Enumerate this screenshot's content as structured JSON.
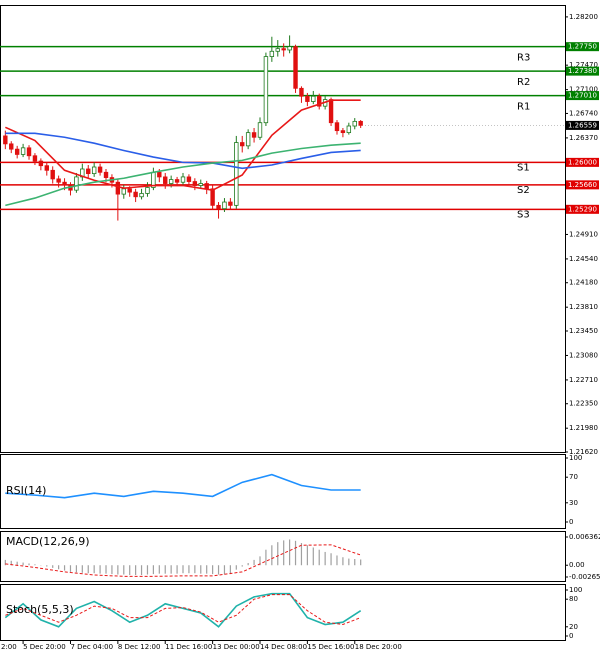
{
  "chart_data": [
    {
      "type": "candlestick",
      "xlim": [
        -0.9,
        94.5
      ],
      "ylim": [
        1.2162,
        1.2838
      ],
      "up_color": "#1f7a1f",
      "down_color": "#e01010",
      "open": [
        1.264,
        1.2628,
        1.262,
        1.2612,
        1.2622,
        1.261,
        1.2602,
        1.2595,
        1.2588,
        1.2575,
        1.257,
        1.2566,
        1.2558,
        1.2578,
        1.259,
        1.2583,
        1.2593,
        1.2585,
        1.2577,
        1.257,
        1.2552,
        1.256,
        1.2555,
        1.2548,
        1.2553,
        1.2562,
        1.2585,
        1.2578,
        1.2568,
        1.2574,
        1.257,
        1.2578,
        1.2571,
        1.2565,
        1.2568,
        1.256,
        1.2535,
        1.253,
        1.254,
        1.2535,
        1.263,
        1.2625,
        1.2645,
        1.2638,
        1.266,
        1.276,
        1.2768,
        1.2772,
        1.277,
        1.2775,
        1.2712,
        1.27,
        1.2692,
        1.27,
        1.2685,
        1.2695,
        1.266,
        1.2648,
        1.2645,
        1.2655,
        1.2662
      ],
      "high": [
        1.2648,
        1.2632,
        1.2625,
        1.2628,
        1.2626,
        1.2614,
        1.2606,
        1.26,
        1.2594,
        1.258,
        1.2576,
        1.257,
        1.2584,
        1.2598,
        1.2596,
        1.26,
        1.2598,
        1.259,
        1.2582,
        1.2575,
        1.2566,
        1.2564,
        1.256,
        1.256,
        1.257,
        1.2592,
        1.259,
        1.2584,
        1.258,
        1.2578,
        1.2584,
        1.2582,
        1.2576,
        1.2574,
        1.2572,
        1.2565,
        1.254,
        1.2546,
        1.2546,
        1.264,
        1.264,
        1.265,
        1.2652,
        1.2668,
        1.2766,
        1.279,
        1.2785,
        1.278,
        1.2792,
        1.2778,
        1.2715,
        1.2705,
        1.2708,
        1.2704,
        1.27,
        1.2698,
        1.2664,
        1.2652,
        1.266,
        1.2667,
        1.2664
      ],
      "low": [
        1.262,
        1.2614,
        1.2606,
        1.2608,
        1.2604,
        1.2596,
        1.2588,
        1.258,
        1.2568,
        1.2562,
        1.2558,
        1.255,
        1.2554,
        1.2572,
        1.2576,
        1.2578,
        1.258,
        1.257,
        1.2562,
        1.2512,
        1.2545,
        1.2548,
        1.254,
        1.2544,
        1.2548,
        1.2558,
        1.257,
        1.256,
        1.2562,
        1.2564,
        1.2565,
        1.2566,
        1.2558,
        1.256,
        1.2552,
        1.2528,
        1.2515,
        1.2525,
        1.2528,
        1.253,
        1.2615,
        1.262,
        1.263,
        1.2634,
        1.2655,
        1.2752,
        1.276,
        1.276,
        1.2765,
        1.2705,
        1.269,
        1.2685,
        1.2688,
        1.268,
        1.268,
        1.2655,
        1.2642,
        1.2638,
        1.2642,
        1.265,
        1.2652
      ],
      "close": [
        1.2628,
        1.262,
        1.2612,
        1.2622,
        1.261,
        1.2602,
        1.2595,
        1.2588,
        1.2575,
        1.257,
        1.2566,
        1.2558,
        1.2578,
        1.259,
        1.2583,
        1.2593,
        1.2585,
        1.2577,
        1.257,
        1.2552,
        1.256,
        1.2555,
        1.2548,
        1.2553,
        1.2562,
        1.2585,
        1.2578,
        1.2568,
        1.2574,
        1.257,
        1.2578,
        1.2571,
        1.2565,
        1.2568,
        1.256,
        1.2535,
        1.253,
        1.254,
        1.2535,
        1.263,
        1.2625,
        1.2645,
        1.2638,
        1.266,
        1.276,
        1.2768,
        1.2772,
        1.277,
        1.2775,
        1.2712,
        1.27,
        1.2692,
        1.27,
        1.2685,
        1.2695,
        1.266,
        1.2648,
        1.2645,
        1.2655,
        1.2662,
        1.2656
      ],
      "series": [
        {
          "color": "#e81818",
          "x": [
            0,
            5,
            10,
            15,
            20,
            25,
            30,
            35,
            40,
            45,
            50,
            55,
            60
          ],
          "values": [
            1.2653,
            1.2633,
            1.2588,
            1.2573,
            1.2561,
            1.2565,
            1.2565,
            1.2558,
            1.2581,
            1.2641,
            1.2679,
            1.2694,
            1.2694
          ]
        },
        {
          "color": "#2a5ee8",
          "x": [
            0,
            5,
            10,
            15,
            20,
            25,
            30,
            35,
            40,
            45,
            50,
            55,
            60
          ],
          "values": [
            1.2644,
            1.2644,
            1.2638,
            1.2629,
            1.2618,
            1.2608,
            1.26,
            1.2599,
            1.2591,
            1.2596,
            1.2606,
            1.2615,
            1.2618
          ]
        },
        {
          "color": "#3cb371",
          "x": [
            0,
            5,
            10,
            15,
            20,
            25,
            30,
            35,
            40,
            45,
            50,
            55,
            60
          ],
          "values": [
            1.2535,
            1.2546,
            1.2561,
            1.257,
            1.2576,
            1.2585,
            1.2593,
            1.2599,
            1.2603,
            1.2614,
            1.2621,
            1.2626,
            1.2629
          ]
        }
      ],
      "levels": {
        "names": [
          "R3",
          "R2",
          "R1",
          "S1",
          "S2",
          "S3"
        ],
        "values": [
          1.2775,
          1.2738,
          1.2701,
          1.26,
          1.2566,
          1.2529
        ],
        "value_labels": [
          "1.27750",
          "1.27380",
          "1.27010",
          "1.26000",
          "1.25660",
          "1.25290"
        ],
        "colors": [
          "#008000",
          "#008000",
          "#008000",
          "#e00000",
          "#e00000",
          "#e00000"
        ]
      },
      "last_price": 1.26559,
      "yticks": [
        {
          "value": 1.282,
          "label": "1.28200"
        },
        {
          "value": 1.2747,
          "label": "1.27470"
        },
        {
          "value": 1.271,
          "label": "1.27100"
        },
        {
          "value": 1.2674,
          "label": "1.26740"
        },
        {
          "value": 1.2637,
          "label": "1.26370"
        },
        {
          "value": 1.2491,
          "label": "1.24910"
        },
        {
          "value": 1.2454,
          "label": "1.24540"
        },
        {
          "value": 1.2418,
          "label": "1.24180"
        },
        {
          "value": 1.2381,
          "label": "1.23810"
        },
        {
          "value": 1.2345,
          "label": "1.23450"
        },
        {
          "value": 1.2308,
          "label": "1.23080"
        },
        {
          "value": 1.2271,
          "label": "1.22710"
        },
        {
          "value": 1.2235,
          "label": "1.22350"
        },
        {
          "value": 1.2198,
          "label": "1.21980"
        },
        {
          "value": 1.2162,
          "label": "1.21620"
        }
      ]
    },
    {
      "type": "line",
      "title": "RSI(14)",
      "xlim": [
        -0.9,
        94.5
      ],
      "ylim": [
        0,
        100
      ],
      "yticks": [
        0,
        30,
        70,
        100
      ],
      "series": [
        {
          "color": "#1e90ff",
          "x": [
            0,
            5,
            10,
            15,
            20,
            25,
            30,
            35,
            40,
            45,
            50,
            55,
            60
          ],
          "values": [
            45,
            42,
            38,
            45,
            40,
            48,
            45,
            40,
            62,
            74,
            57,
            50,
            50
          ]
        }
      ]
    },
    {
      "type": "bar",
      "title": "MACD(12,26,9)",
      "xlim": [
        -0.9,
        94.5
      ],
      "ylim": [
        -0.002652,
        0.006362
      ],
      "yticks": [
        -0.002652,
        {
          "value": 0,
          "label": "0.00"
        },
        0.006362
      ],
      "series": [
        {
          "style": "bars",
          "color": "#a0a0a0",
          "values": [
            0.0012,
            0.001,
            0.0008,
            0.0006,
            0.0004,
            0.0002,
            0.0,
            -0.0003,
            -0.0006,
            -0.0009,
            -0.0012,
            -0.0015,
            -0.0016,
            -0.0017,
            -0.0018,
            -0.0018,
            -0.0019,
            -0.0019,
            -0.002,
            -0.0021,
            -0.0021,
            -0.0022,
            -0.0022,
            -0.0022,
            -0.0021,
            -0.002,
            -0.0019,
            -0.0019,
            -0.0019,
            -0.0019,
            -0.0018,
            -0.0018,
            -0.0018,
            -0.0019,
            -0.0019,
            -0.002,
            -0.0021,
            -0.0021,
            -0.002,
            -0.001,
            -0.0003,
            0.0005,
            0.0012,
            0.002,
            0.0035,
            0.0045,
            0.0052,
            0.0056,
            0.0058,
            0.0055,
            0.005,
            0.0045,
            0.004,
            0.0035,
            0.003,
            0.0027,
            0.0022,
            0.0018,
            0.0015,
            0.0014,
            0.0013
          ]
        },
        {
          "style": "dashed",
          "color": "#e81818",
          "x": [
            0,
            5,
            10,
            15,
            20,
            25,
            30,
            35,
            40,
            45,
            50,
            55,
            60
          ],
          "values": [
            0.0003,
            -0.0005,
            -0.0015,
            -0.0022,
            -0.0025,
            -0.0025,
            -0.0024,
            -0.0024,
            -0.0015,
            0.0015,
            0.0045,
            0.0046,
            0.0023
          ]
        }
      ]
    },
    {
      "type": "line",
      "title": "Stoch(5,5,3)",
      "xlim": [
        -0.9,
        94.5
      ],
      "ylim": [
        0,
        100
      ],
      "yticks": [
        0,
        20,
        80,
        100
      ],
      "series": [
        {
          "color": "#20b2aa",
          "x": [
            0,
            3,
            6,
            9,
            12,
            15,
            18,
            21,
            24,
            27,
            30,
            33,
            36,
            39,
            42,
            45,
            48,
            51,
            54,
            57,
            60
          ],
          "values": [
            40,
            70,
            35,
            20,
            60,
            75,
            55,
            30,
            45,
            70,
            60,
            50,
            20,
            65,
            85,
            92,
            92,
            40,
            25,
            30,
            55
          ]
        },
        {
          "style": "dashed",
          "color": "#e81818",
          "x": [
            0,
            3,
            6,
            9,
            12,
            15,
            18,
            21,
            24,
            27,
            30,
            33,
            36,
            39,
            42,
            45,
            48,
            51,
            54,
            57,
            60
          ],
          "values": [
            45,
            60,
            45,
            30,
            45,
            65,
            60,
            40,
            40,
            60,
            62,
            52,
            30,
            45,
            80,
            90,
            90,
            55,
            30,
            25,
            40
          ]
        }
      ],
      "xticks": [
        {
          "value": -5,
          "label": "2:00"
        },
        {
          "value": 3,
          "label": "5 Dec 20:00"
        },
        {
          "value": 11,
          "label": "7 Dec 04:00"
        },
        {
          "value": 19,
          "label": "8 Dec 12:00"
        },
        {
          "value": 27,
          "label": "11 Dec 16:00"
        },
        {
          "value": 35,
          "label": "13 Dec 00:00"
        },
        {
          "value": 43,
          "label": "14 Dec 08:00"
        },
        {
          "value": 51,
          "label": "15 Dec 16:00"
        },
        {
          "value": 59,
          "label": "18 Dec 20:00"
        }
      ]
    }
  ]
}
